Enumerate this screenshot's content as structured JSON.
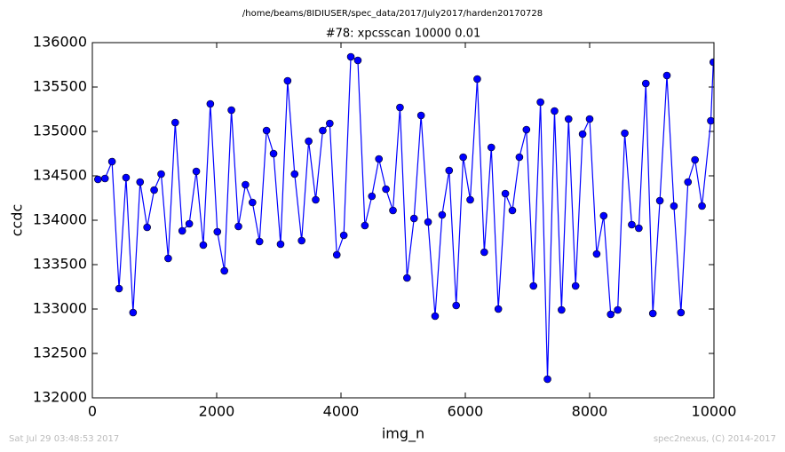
{
  "chart_data": {
    "type": "line",
    "suptitle": "/home/beams/8IDIUSER/spec_data/2017/July2017/harden20170728",
    "title": "#78: xpcsscan 10000 0.01",
    "xlabel": "img_n",
    "ylabel": "ccdc",
    "footer_left": "Sat Jul 29 03:48:53 2017",
    "footer_right": "spec2nexus, (C) 2014-2017",
    "xlim": [
      0,
      10000
    ],
    "ylim": [
      132000,
      136000
    ],
    "xticks": [
      0,
      2000,
      4000,
      6000,
      8000,
      10000
    ],
    "yticks": [
      132000,
      132500,
      133000,
      133500,
      134000,
      134500,
      135000,
      135500,
      136000
    ],
    "color": "#0000ff",
    "x": [
      90,
      203,
      316,
      429,
      542,
      655,
      768,
      881,
      994,
      1107,
      1220,
      1333,
      1446,
      1559,
      1672,
      1785,
      1898,
      2011,
      2124,
      2237,
      2350,
      2463,
      2576,
      2689,
      2802,
      2915,
      3028,
      3141,
      3254,
      3367,
      3480,
      3593,
      3706,
      3819,
      3932,
      4045,
      4158,
      4271,
      4384,
      4497,
      4610,
      4723,
      4836,
      4949,
      5062,
      5175,
      5288,
      5401,
      5514,
      5627,
      5740,
      5853,
      5966,
      6079,
      6192,
      6305,
      6418,
      6531,
      6644,
      6757,
      6870,
      6983,
      7096,
      7209,
      7322,
      7435,
      7548,
      7661,
      7774,
      7887,
      8000,
      8113,
      8226,
      8339,
      8452,
      8565,
      8678,
      8791,
      8904,
      9017,
      9130,
      9243,
      9356,
      9469,
      9582,
      9695,
      9808,
      9950,
      9990
    ],
    "values": [
      134460,
      134470,
      134660,
      133230,
      134480,
      132960,
      134430,
      133920,
      134340,
      134520,
      133570,
      135100,
      133880,
      133960,
      134550,
      133720,
      135310,
      133870,
      133430,
      135240,
      133930,
      134400,
      134200,
      133760,
      135010,
      134750,
      133730,
      135570,
      134520,
      133770,
      134890,
      134230,
      135010,
      135090,
      133610,
      133830,
      135840,
      135800,
      133940,
      134270,
      134690,
      134350,
      134110,
      135270,
      133350,
      134020,
      135180,
      133980,
      132920,
      134060,
      134560,
      133040,
      134710,
      134230,
      135590,
      133640,
      134820,
      133000,
      134300,
      134110,
      134710,
      135020,
      133260,
      135330,
      132210,
      135230,
      132990,
      135140,
      133260,
      134970,
      135140,
      133620,
      134050,
      132940,
      132990,
      134980,
      133950,
      133910,
      135540,
      132950,
      134220,
      135630,
      134160,
      132960,
      134430,
      134680,
      134160,
      135120,
      135780
    ]
  }
}
